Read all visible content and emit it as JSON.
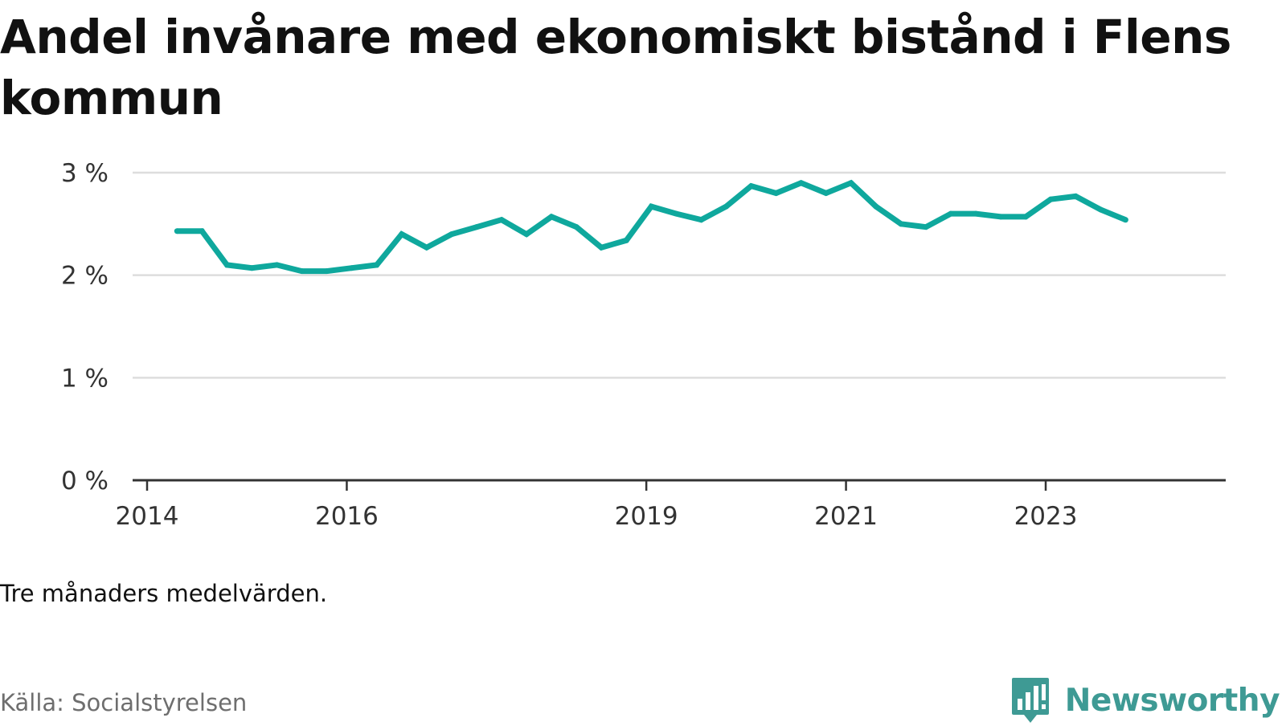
{
  "title": "Andel invånare med ekonomiskt bistånd i Flens kommun",
  "note": "Tre månaders medelvärden.",
  "source": "Källa: Socialstyrelsen",
  "brand": {
    "name": "Newsworthy",
    "color": "#3e9a94",
    "icon": "newsworthy-logo-icon"
  },
  "colors": {
    "line": "#0fa89d",
    "grid": "#dddddd",
    "axis": "#333333"
  },
  "chart_data": {
    "type": "line",
    "title": "Andel invånare med ekonomiskt bistånd i Flens kommun",
    "xlabel": "",
    "ylabel": "",
    "y_unit": "%",
    "ylim": [
      0,
      3
    ],
    "yticks": [
      0,
      1,
      2,
      3
    ],
    "ytick_labels": [
      "0 %",
      "1 %",
      "2 %",
      "3 %"
    ],
    "xlim": [
      2014,
      2024.32
    ],
    "xticks": [
      2014,
      2016,
      2019,
      2021,
      2023
    ],
    "xtick_labels": [
      "2014",
      "2016",
      "2019",
      "2021",
      "2023"
    ],
    "grid": true,
    "legend": "none",
    "series": [
      {
        "x": [
          2014.3,
          2014.55,
          2014.8,
          2015.05,
          2015.3,
          2015.55,
          2015.8,
          2016.05,
          2016.3,
          2016.55,
          2016.8,
          2017.05,
          2017.3,
          2017.55,
          2017.8,
          2018.05,
          2018.3,
          2018.55,
          2018.8,
          2019.05,
          2019.3,
          2019.55,
          2019.8,
          2020.05,
          2020.3,
          2020.55,
          2020.8,
          2021.05,
          2021.3,
          2021.55,
          2021.8,
          2022.05,
          2022.3,
          2022.55,
          2022.8,
          2023.05,
          2023.3,
          2023.55,
          2023.8
        ],
        "values": [
          2.43,
          2.43,
          2.1,
          2.07,
          2.1,
          2.04,
          2.04,
          2.07,
          2.1,
          2.4,
          2.27,
          2.4,
          2.47,
          2.54,
          2.4,
          2.57,
          2.47,
          2.27,
          2.34,
          2.67,
          2.6,
          2.54,
          2.67,
          2.87,
          2.8,
          2.9,
          2.8,
          2.9,
          2.67,
          2.5,
          2.47,
          2.6,
          2.6,
          2.57,
          2.57,
          2.74,
          2.77,
          2.64,
          2.54
        ]
      }
    ]
  }
}
